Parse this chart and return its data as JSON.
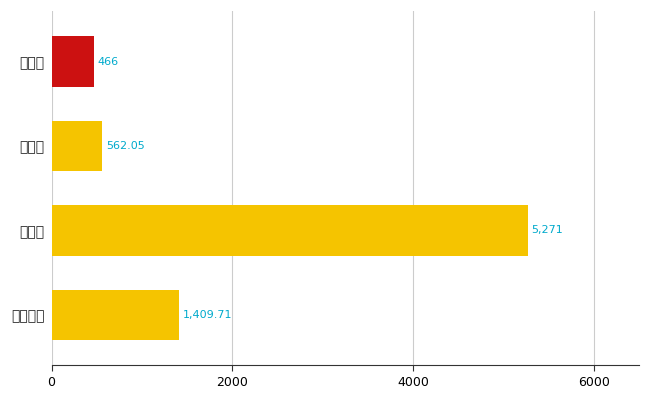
{
  "categories": [
    "御所市",
    "県平均",
    "県最大",
    "全国平均"
  ],
  "values": [
    466,
    562.05,
    5271,
    1409.71
  ],
  "bar_colors": [
    "#cc1111",
    "#f5c400",
    "#f5c400",
    "#f5c400"
  ],
  "value_labels": [
    "466",
    "562.05",
    "5,271",
    "1,409.71"
  ],
  "value_color": "#00aacc",
  "xlim": [
    0,
    6500
  ],
  "xticks": [
    0,
    2000,
    4000,
    6000
  ],
  "background_color": "#ffffff",
  "grid_color": "#cccccc",
  "bar_height": 0.6,
  "figsize": [
    6.5,
    4.0
  ],
  "dpi": 100
}
